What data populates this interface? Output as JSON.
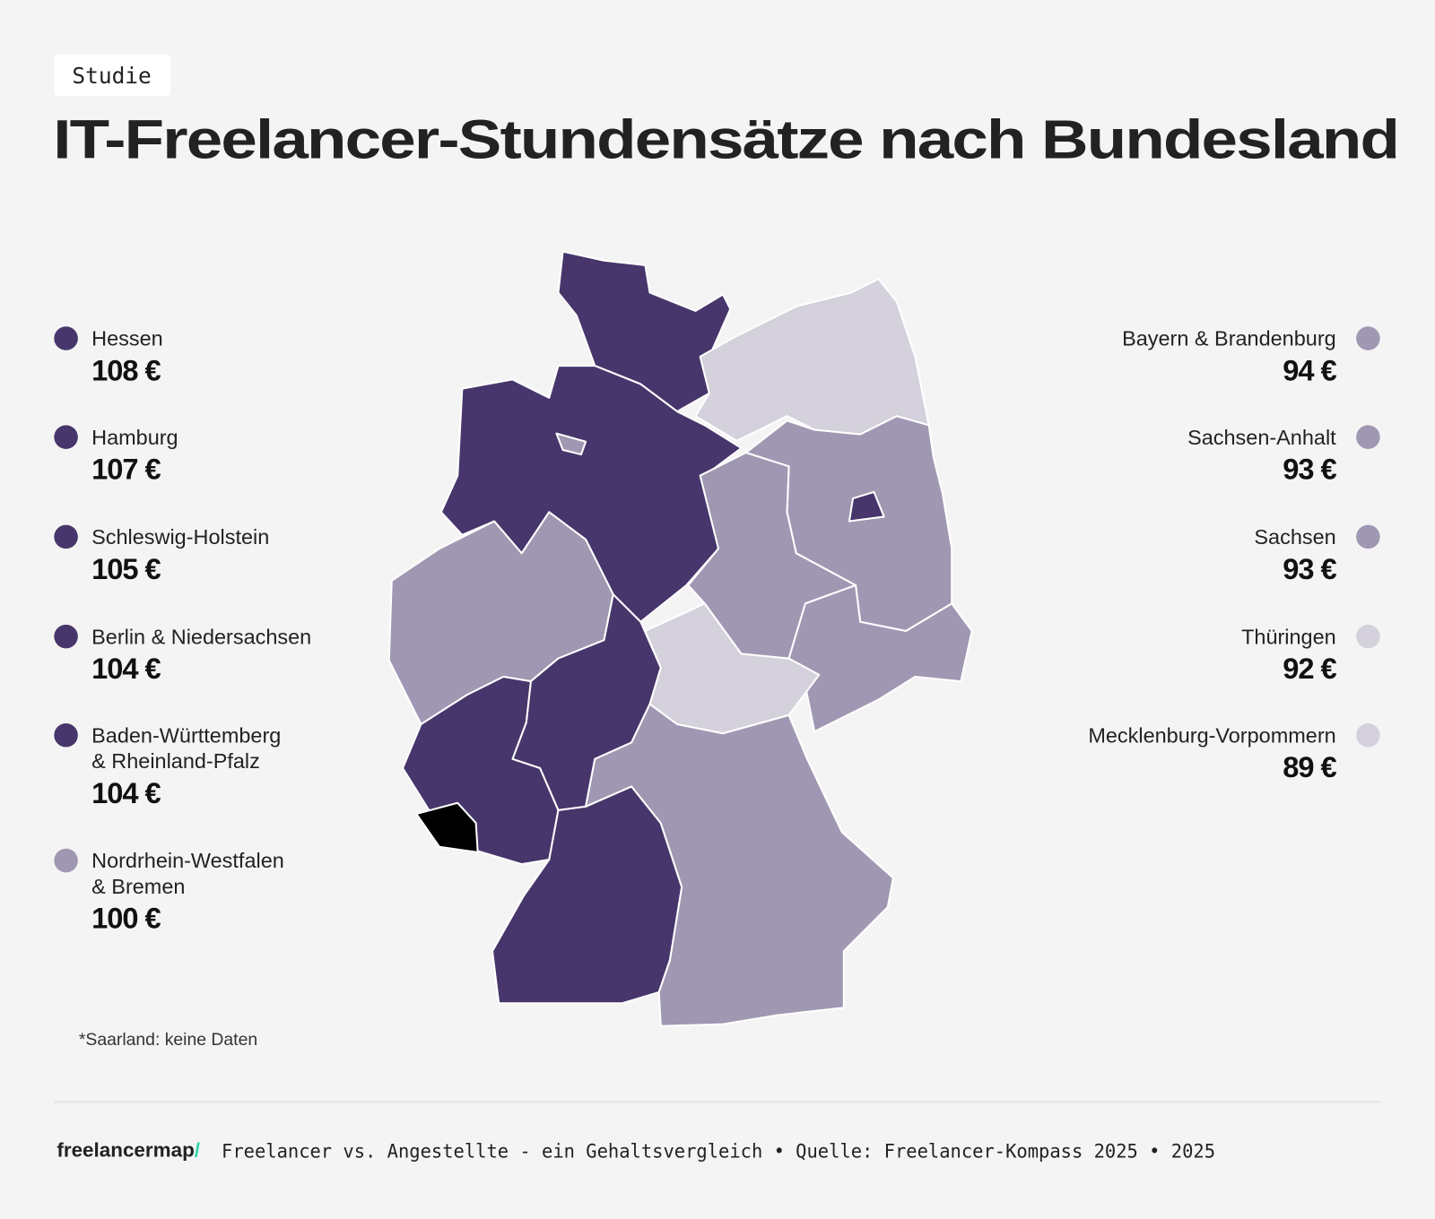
{
  "header": {
    "tag": "Studie",
    "title": "IT-Freelancer-Stundensätze nach Bundesland"
  },
  "legend_left": [
    {
      "lines": [
        "Hessen"
      ],
      "value": "108 €",
      "color": "#47366b"
    },
    {
      "lines": [
        "Hamburg"
      ],
      "value": "107 €",
      "color": "#47366b"
    },
    {
      "lines": [
        "Schleswig-Holstein"
      ],
      "value": "105 €",
      "color": "#47366b"
    },
    {
      "lines": [
        "Berlin & Niedersachsen"
      ],
      "value": "104 €",
      "color": "#47366b"
    },
    {
      "lines": [
        "Baden-Württemberg",
        "& Rheinland-Pfalz"
      ],
      "value": "104 €",
      "color": "#47366b"
    },
    {
      "lines": [
        "Nordrhein-Westfalen",
        "& Bremen"
      ],
      "value": "100 €",
      "color": "#a097b2"
    }
  ],
  "legend_right": [
    {
      "lines": [
        "Bayern & Brandenburg"
      ],
      "value": "94 €",
      "color": "#a097b2"
    },
    {
      "lines": [
        "Sachsen-Anhalt"
      ],
      "value": "93 €",
      "color": "#a097b2"
    },
    {
      "lines": [
        "Sachsen"
      ],
      "value": "93 €",
      "color": "#a097b2"
    },
    {
      "lines": [
        "Thüringen"
      ],
      "value": "92 €",
      "color": "#d4d0dc"
    },
    {
      "lines": [
        "Mecklenburg-Vorpommern"
      ],
      "value": "89 €",
      "color": "#d4d0dc"
    }
  ],
  "note": "*Saarland: keine Daten",
  "footer": {
    "logo": "freelancermap",
    "logo_mark": "/",
    "text": "Freelancer vs. Angestellte - ein Gehaltsvergleich • Quelle: Freelancer-Kompass 2025 • 2025"
  }
}
